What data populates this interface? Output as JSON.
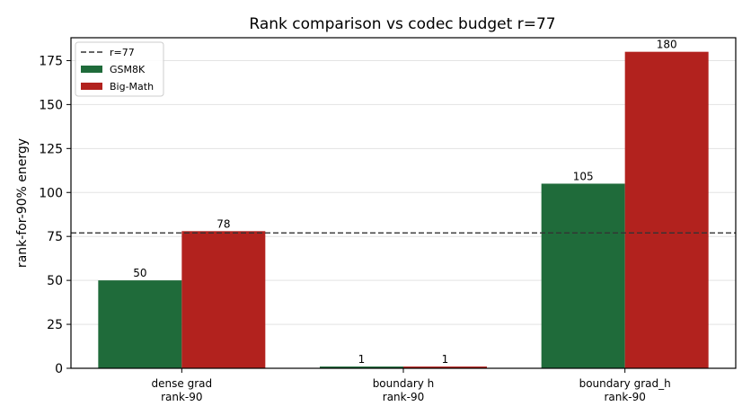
{
  "chart_data": {
    "type": "bar",
    "title": "Rank comparison vs codec budget r=77",
    "xlabel": "",
    "ylabel": "rank-for-90% energy",
    "categories": [
      [
        "dense grad",
        "rank-90"
      ],
      [
        "boundary h",
        "rank-90"
      ],
      [
        "boundary grad_h",
        "rank-90"
      ]
    ],
    "series": [
      {
        "name": "GSM8K",
        "values": [
          50,
          1,
          105
        ],
        "color": "#1f6b3a"
      },
      {
        "name": "Big-Math",
        "values": [
          78,
          1,
          180
        ],
        "color": "#b2221e"
      }
    ],
    "reference_line": {
      "label": "r=77",
      "value": 77,
      "style": "dashed",
      "color": "#333333"
    },
    "ylim": [
      0,
      188
    ],
    "yticks": [
      0,
      25,
      50,
      75,
      100,
      125,
      150,
      175
    ],
    "grid": "y",
    "legend_placement": "top-left"
  }
}
